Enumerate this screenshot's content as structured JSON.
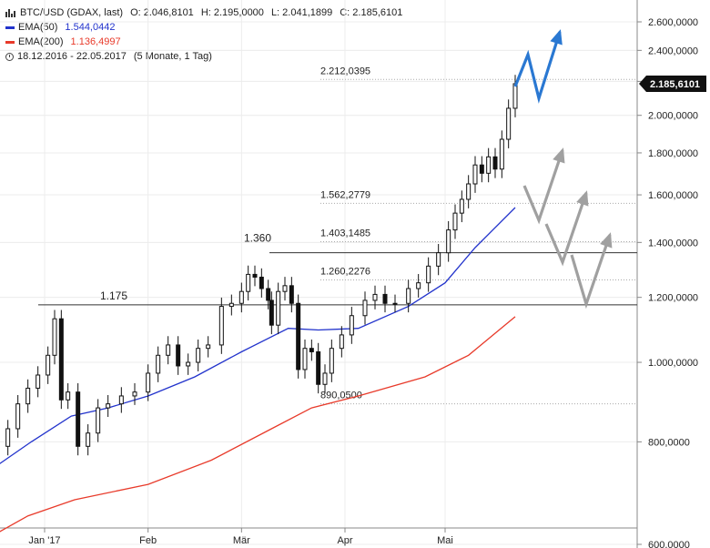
{
  "header": {
    "symbol_line": "BTC/USD (GDAX, last)",
    "open": "O: 2.046,8101",
    "high": "H: 2.195,0000",
    "low": "L: 2.041,1899",
    "close": "C: 2.185,6101",
    "ema50_label": "EMA(50)",
    "ema50_value": "1.544,0442",
    "ema200_label": "EMA(200)",
    "ema200_value": "1.136,4997",
    "period": "18.12.2016 - 22.05.2017",
    "interval": "(5 Monate, 1 Tag)"
  },
  "colors": {
    "ema50": "#2233cc",
    "ema200": "#e83a2a",
    "candle": "#111111",
    "arrow_blue": "#2a78d2",
    "arrow_gray": "#a0a0a0",
    "price_badge_bg": "#111111"
  },
  "chart_data": {
    "type": "candlestick",
    "instrument": "BTC/USD (GDAX, last)",
    "y_scale": "log",
    "ylim": [
      600,
      2700
    ],
    "y_ticks": [
      600,
      800,
      1000,
      1200,
      1400,
      1600,
      1800,
      2000,
      2200,
      2400,
      2600
    ],
    "y_tick_labels": [
      "600,0000",
      "800,0000",
      "1.000,0000",
      "1.200,0000",
      "1.400,0000",
      "1.600,0000",
      "1.800,0000",
      "2.000,0000",
      "2.200,0000",
      "2.400,0000",
      "2.600,0000"
    ],
    "x_range": [
      "2016-12-18",
      "2017-05-22"
    ],
    "x_ticks": [
      {
        "date": "2017-01-01",
        "label": "Jan '17"
      },
      {
        "date": "2017-02-01",
        "label": "Feb"
      },
      {
        "date": "2017-03-01",
        "label": "Mär"
      },
      {
        "date": "2017-04-01",
        "label": "Apr"
      },
      {
        "date": "2017-05-01",
        "label": "Mai"
      }
    ],
    "last_price_label": "2.185,6101",
    "close_series": [
      {
        "date": "2016-12-18",
        "close": 790
      },
      {
        "date": "2016-12-21",
        "close": 830
      },
      {
        "date": "2016-12-24",
        "close": 890
      },
      {
        "date": "2016-12-27",
        "close": 930
      },
      {
        "date": "2016-12-30",
        "close": 965
      },
      {
        "date": "2017-01-02",
        "close": 1020
      },
      {
        "date": "2017-01-04",
        "close": 1130
      },
      {
        "date": "2017-01-06",
        "close": 900
      },
      {
        "date": "2017-01-08",
        "close": 920
      },
      {
        "date": "2017-01-11",
        "close": 790
      },
      {
        "date": "2017-01-14",
        "close": 820
      },
      {
        "date": "2017-01-17",
        "close": 880
      },
      {
        "date": "2017-01-20",
        "close": 890
      },
      {
        "date": "2017-01-24",
        "close": 910
      },
      {
        "date": "2017-01-28",
        "close": 920
      },
      {
        "date": "2017-02-01",
        "close": 970
      },
      {
        "date": "2017-02-04",
        "close": 1020
      },
      {
        "date": "2017-02-07",
        "close": 1050
      },
      {
        "date": "2017-02-10",
        "close": 990
      },
      {
        "date": "2017-02-13",
        "close": 1000
      },
      {
        "date": "2017-02-16",
        "close": 1040
      },
      {
        "date": "2017-02-19",
        "close": 1050
      },
      {
        "date": "2017-02-23",
        "close": 1170
      },
      {
        "date": "2017-02-26",
        "close": 1180
      },
      {
        "date": "2017-03-01",
        "close": 1220
      },
      {
        "date": "2017-03-03",
        "close": 1280
      },
      {
        "date": "2017-03-05",
        "close": 1270
      },
      {
        "date": "2017-03-07",
        "close": 1230
      },
      {
        "date": "2017-03-09",
        "close": 1190
      },
      {
        "date": "2017-03-10",
        "close": 1110
      },
      {
        "date": "2017-03-12",
        "close": 1220
      },
      {
        "date": "2017-03-14",
        "close": 1240
      },
      {
        "date": "2017-03-16",
        "close": 1180
      },
      {
        "date": "2017-03-18",
        "close": 980
      },
      {
        "date": "2017-03-20",
        "close": 1040
      },
      {
        "date": "2017-03-22",
        "close": 1030
      },
      {
        "date": "2017-03-24",
        "close": 940
      },
      {
        "date": "2017-03-26",
        "close": 970
      },
      {
        "date": "2017-03-28",
        "close": 1040
      },
      {
        "date": "2017-03-31",
        "close": 1080
      },
      {
        "date": "2017-04-03",
        "close": 1140
      },
      {
        "date": "2017-04-07",
        "close": 1190
      },
      {
        "date": "2017-04-10",
        "close": 1210
      },
      {
        "date": "2017-04-13",
        "close": 1180
      },
      {
        "date": "2017-04-16",
        "close": 1180
      },
      {
        "date": "2017-04-20",
        "close": 1230
      },
      {
        "date": "2017-04-23",
        "close": 1250
      },
      {
        "date": "2017-04-26",
        "close": 1310
      },
      {
        "date": "2017-04-29",
        "close": 1360
      },
      {
        "date": "2017-05-02",
        "close": 1450
      },
      {
        "date": "2017-05-04",
        "close": 1520
      },
      {
        "date": "2017-05-06",
        "close": 1580
      },
      {
        "date": "2017-05-08",
        "close": 1650
      },
      {
        "date": "2017-05-10",
        "close": 1740
      },
      {
        "date": "2017-05-12",
        "close": 1700
      },
      {
        "date": "2017-05-14",
        "close": 1780
      },
      {
        "date": "2017-05-16",
        "close": 1720
      },
      {
        "date": "2017-05-18",
        "close": 1870
      },
      {
        "date": "2017-05-20",
        "close": 2040
      },
      {
        "date": "2017-05-22",
        "close": 2185.6101
      }
    ],
    "series": [
      {
        "name": "EMA(50)",
        "points": [
          {
            "date": "2016-12-18",
            "value": 750
          },
          {
            "date": "2016-12-28",
            "value": 800
          },
          {
            "date": "2017-01-09",
            "value": 860
          },
          {
            "date": "2017-01-20",
            "value": 880
          },
          {
            "date": "2017-02-01",
            "value": 910
          },
          {
            "date": "2017-02-15",
            "value": 960
          },
          {
            "date": "2017-03-01",
            "value": 1030
          },
          {
            "date": "2017-03-15",
            "value": 1100
          },
          {
            "date": "2017-03-24",
            "value": 1095
          },
          {
            "date": "2017-04-05",
            "value": 1100
          },
          {
            "date": "2017-04-20",
            "value": 1170
          },
          {
            "date": "2017-05-01",
            "value": 1250
          },
          {
            "date": "2017-05-10",
            "value": 1380
          },
          {
            "date": "2017-05-22",
            "value": 1544.0442
          }
        ]
      },
      {
        "name": "EMA(200)",
        "points": [
          {
            "date": "2016-12-18",
            "value": 620
          },
          {
            "date": "2016-12-27",
            "value": 650
          },
          {
            "date": "2017-01-10",
            "value": 680
          },
          {
            "date": "2017-02-01",
            "value": 710
          },
          {
            "date": "2017-02-20",
            "value": 760
          },
          {
            "date": "2017-03-10",
            "value": 830
          },
          {
            "date": "2017-03-22",
            "value": 880
          },
          {
            "date": "2017-04-05",
            "value": 910
          },
          {
            "date": "2017-04-25",
            "value": 960
          },
          {
            "date": "2017-05-08",
            "value": 1020
          },
          {
            "date": "2017-05-22",
            "value": 1136.4997
          }
        ]
      }
    ],
    "annotations": [
      {
        "label": "1.175",
        "value": 1175
      },
      {
        "label": "1.360",
        "value": 1360
      },
      {
        "label": "2.212,0395",
        "value": 2212.0395
      },
      {
        "label": "1.562,2779",
        "value": 1562.2779
      },
      {
        "label": "1.403,1485",
        "value": 1403.1485
      },
      {
        "label": "1.260,2276",
        "value": 1260.2276
      },
      {
        "label": "890,0500",
        "value": 890.05
      }
    ]
  }
}
